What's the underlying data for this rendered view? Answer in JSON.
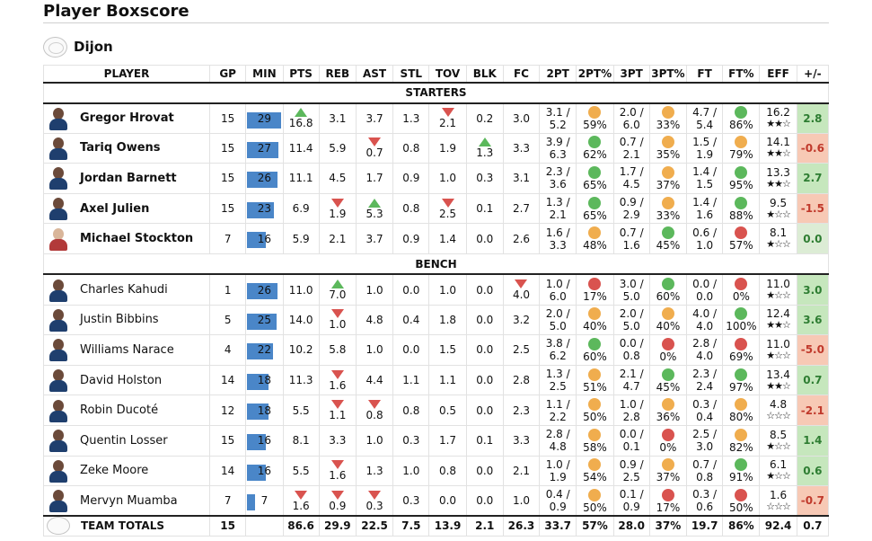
{
  "page": {
    "title": "Player Boxscore"
  },
  "team": {
    "name": "Dijon",
    "logo": "team-logo"
  },
  "colors": {
    "good": "#5cb85c",
    "mid": "#f0ad4e",
    "bad": "#d9534f",
    "min_bar": "#4a86c8",
    "pm_pos": "#c6e7bd",
    "pm_neg": "#f7c9b5",
    "pm_zero": "#dcecd5"
  },
  "headers": [
    "PLAYER",
    "GP",
    "MIN",
    "PTS",
    "REB",
    "AST",
    "STL",
    "TOV",
    "BLK",
    "FC",
    "2PT",
    "2PT%",
    "3PT",
    "3PT%",
    "FT",
    "FT%",
    "EFF",
    "+/-"
  ],
  "groups": {
    "starters": "STARTERS",
    "bench": "BENCH"
  },
  "starters": [
    {
      "name": "Gregor Hrovat",
      "gp": "15",
      "min": "29",
      "min_fill": 1.0,
      "pts": "16.8",
      "pts_t": "up",
      "reb": "3.1",
      "reb_t": "",
      "ast": "3.7",
      "ast_t": "",
      "stl": "1.3",
      "tov": "2.1",
      "tov_t": "down",
      "blk": "0.2",
      "blk_t": "",
      "fc": "3.0",
      "fc_t": "",
      "p2m": "3.1 /",
      "p2a": "5.2",
      "p2pct": "59%",
      "p2c": "mid",
      "p3m": "2.0 /",
      "p3a": "6.0",
      "p3pct": "33%",
      "p3c": "mid",
      "ftm": "4.7 /",
      "fta": "5.4",
      "ftpct": "86%",
      "ftc": "good",
      "eff": "16.2",
      "stars": "★★☆",
      "pm": "2.8",
      "pmc": "pos"
    },
    {
      "name": "Tariq Owens",
      "gp": "15",
      "min": "27",
      "min_fill": 0.93,
      "pts": "11.4",
      "pts_t": "",
      "reb": "5.9",
      "reb_t": "",
      "ast": "0.7",
      "ast_t": "down",
      "stl": "0.8",
      "tov": "1.9",
      "tov_t": "",
      "blk": "1.3",
      "blk_t": "up",
      "fc": "3.3",
      "fc_t": "",
      "p2m": "3.9 /",
      "p2a": "6.3",
      "p2pct": "62%",
      "p2c": "good",
      "p3m": "0.7 /",
      "p3a": "2.1",
      "p3pct": "35%",
      "p3c": "mid",
      "ftm": "1.5 /",
      "fta": "1.9",
      "ftpct": "79%",
      "ftc": "mid",
      "eff": "14.1",
      "stars": "★★☆",
      "pm": "-0.6",
      "pmc": "neg"
    },
    {
      "name": "Jordan Barnett",
      "gp": "15",
      "min": "26",
      "min_fill": 0.9,
      "pts": "11.1",
      "pts_t": "",
      "reb": "4.5",
      "reb_t": "",
      "ast": "1.7",
      "ast_t": "",
      "stl": "0.9",
      "tov": "1.0",
      "tov_t": "",
      "blk": "0.3",
      "blk_t": "",
      "fc": "3.1",
      "fc_t": "",
      "p2m": "2.3 /",
      "p2a": "3.6",
      "p2pct": "65%",
      "p2c": "good",
      "p3m": "1.7 /",
      "p3a": "4.5",
      "p3pct": "37%",
      "p3c": "mid",
      "ftm": "1.4 /",
      "fta": "1.5",
      "ftpct": "95%",
      "ftc": "good",
      "eff": "13.3",
      "stars": "★★☆",
      "pm": "2.7",
      "pmc": "pos"
    },
    {
      "name": "Axel Julien",
      "gp": "15",
      "min": "23",
      "min_fill": 0.79,
      "pts": "6.9",
      "pts_t": "",
      "reb": "1.9",
      "reb_t": "down",
      "ast": "5.3",
      "ast_t": "up",
      "stl": "0.8",
      "tov": "2.5",
      "tov_t": "down",
      "blk": "0.1",
      "blk_t": "",
      "fc": "2.7",
      "fc_t": "",
      "p2m": "1.3 /",
      "p2a": "2.1",
      "p2pct": "65%",
      "p2c": "good",
      "p3m": "0.9 /",
      "p3a": "2.9",
      "p3pct": "33%",
      "p3c": "mid",
      "ftm": "1.4 /",
      "fta": "1.6",
      "ftpct": "88%",
      "ftc": "good",
      "eff": "9.5",
      "stars": "★☆☆",
      "pm": "-1.5",
      "pmc": "neg"
    },
    {
      "name": "Michael Stockton",
      "gp": "7",
      "min": "16",
      "min_fill": 0.55,
      "pts": "5.9",
      "pts_t": "",
      "reb": "2.1",
      "reb_t": "",
      "ast": "3.7",
      "ast_t": "",
      "stl": "0.9",
      "tov": "1.4",
      "tov_t": "",
      "blk": "0.0",
      "blk_t": "",
      "fc": "2.6",
      "fc_t": "",
      "p2m": "1.6 /",
      "p2a": "3.3",
      "p2pct": "48%",
      "p2c": "mid",
      "p3m": "0.7 /",
      "p3a": "1.6",
      "p3pct": "45%",
      "p3c": "good",
      "ftm": "0.6 /",
      "fta": "1.0",
      "ftpct": "57%",
      "ftc": "bad",
      "eff": "8.1",
      "stars": "★☆☆",
      "pm": "0.0",
      "pmc": "zero",
      "red": true
    }
  ],
  "bench": [
    {
      "name": "Charles Kahudi",
      "gp": "1",
      "min": "26",
      "min_fill": 0.9,
      "pts": "11.0",
      "pts_t": "",
      "reb": "7.0",
      "reb_t": "up",
      "ast": "1.0",
      "ast_t": "",
      "stl": "0.0",
      "tov": "1.0",
      "tov_t": "",
      "blk": "0.0",
      "blk_t": "",
      "fc": "4.0",
      "fc_t": "down",
      "p2m": "1.0 /",
      "p2a": "6.0",
      "p2pct": "17%",
      "p2c": "bad",
      "p3m": "3.0 /",
      "p3a": "5.0",
      "p3pct": "60%",
      "p3c": "good",
      "ftm": "0.0 /",
      "fta": "0.0",
      "ftpct": "0%",
      "ftc": "bad",
      "eff": "11.0",
      "stars": "★☆☆",
      "pm": "3.0",
      "pmc": "pos"
    },
    {
      "name": "Justin Bibbins",
      "gp": "5",
      "min": "25",
      "min_fill": 0.86,
      "pts": "14.0",
      "pts_t": "",
      "reb": "1.0",
      "reb_t": "down",
      "ast": "4.8",
      "ast_t": "",
      "stl": "0.4",
      "tov": "1.8",
      "tov_t": "",
      "blk": "0.0",
      "blk_t": "",
      "fc": "3.2",
      "fc_t": "",
      "p2m": "2.0 /",
      "p2a": "5.0",
      "p2pct": "40%",
      "p2c": "mid",
      "p3m": "2.0 /",
      "p3a": "5.0",
      "p3pct": "40%",
      "p3c": "mid",
      "ftm": "4.0 /",
      "fta": "4.0",
      "ftpct": "100%",
      "ftc": "good",
      "eff": "12.4",
      "stars": "★★☆",
      "pm": "3.6",
      "pmc": "pos"
    },
    {
      "name": "Williams Narace",
      "gp": "4",
      "min": "22",
      "min_fill": 0.76,
      "pts": "10.2",
      "pts_t": "",
      "reb": "5.8",
      "reb_t": "",
      "ast": "1.0",
      "ast_t": "",
      "stl": "0.0",
      "tov": "1.5",
      "tov_t": "",
      "blk": "0.0",
      "blk_t": "",
      "fc": "2.5",
      "fc_t": "",
      "p2m": "3.8 /",
      "p2a": "6.2",
      "p2pct": "60%",
      "p2c": "good",
      "p3m": "0.0 /",
      "p3a": "0.8",
      "p3pct": "0%",
      "p3c": "bad",
      "ftm": "2.8 /",
      "fta": "4.0",
      "ftpct": "69%",
      "ftc": "bad",
      "eff": "11.0",
      "stars": "★☆☆",
      "pm": "-5.0",
      "pmc": "neg"
    },
    {
      "name": "David Holston",
      "gp": "14",
      "min": "18",
      "min_fill": 0.62,
      "pts": "11.3",
      "pts_t": "",
      "reb": "1.6",
      "reb_t": "down",
      "ast": "4.4",
      "ast_t": "",
      "stl": "1.1",
      "tov": "1.1",
      "tov_t": "",
      "blk": "0.0",
      "blk_t": "",
      "fc": "2.8",
      "fc_t": "",
      "p2m": "1.3 /",
      "p2a": "2.5",
      "p2pct": "51%",
      "p2c": "mid",
      "p3m": "2.1 /",
      "p3a": "4.7",
      "p3pct": "45%",
      "p3c": "good",
      "ftm": "2.3 /",
      "fta": "2.4",
      "ftpct": "97%",
      "ftc": "good",
      "eff": "13.4",
      "stars": "★★☆",
      "pm": "0.7",
      "pmc": "pos"
    },
    {
      "name": "Robin Ducoté",
      "gp": "12",
      "min": "18",
      "min_fill": 0.62,
      "pts": "5.5",
      "pts_t": "",
      "reb": "1.1",
      "reb_t": "down",
      "ast": "0.8",
      "ast_t": "down",
      "stl": "0.8",
      "tov": "0.5",
      "tov_t": "",
      "blk": "0.0",
      "blk_t": "",
      "fc": "2.3",
      "fc_t": "",
      "p2m": "1.1 /",
      "p2a": "2.2",
      "p2pct": "50%",
      "p2c": "mid",
      "p3m": "1.0 /",
      "p3a": "2.8",
      "p3pct": "36%",
      "p3c": "mid",
      "ftm": "0.3 /",
      "fta": "0.4",
      "ftpct": "80%",
      "ftc": "mid",
      "eff": "4.8",
      "stars": "☆☆☆",
      "pm": "-2.1",
      "pmc": "neg"
    },
    {
      "name": "Quentin Losser",
      "gp": "15",
      "min": "16",
      "min_fill": 0.55,
      "pts": "8.1",
      "pts_t": "",
      "reb": "3.3",
      "reb_t": "",
      "ast": "1.0",
      "ast_t": "",
      "stl": "0.3",
      "tov": "1.7",
      "tov_t": "",
      "blk": "0.1",
      "blk_t": "",
      "fc": "3.3",
      "fc_t": "",
      "p2m": "2.8 /",
      "p2a": "4.8",
      "p2pct": "58%",
      "p2c": "mid",
      "p3m": "0.0 /",
      "p3a": "0.1",
      "p3pct": "0%",
      "p3c": "bad",
      "ftm": "2.5 /",
      "fta": "3.0",
      "ftpct": "82%",
      "ftc": "mid",
      "eff": "8.5",
      "stars": "★☆☆",
      "pm": "1.4",
      "pmc": "pos"
    },
    {
      "name": "Zeke Moore",
      "gp": "14",
      "min": "16",
      "min_fill": 0.55,
      "pts": "5.5",
      "pts_t": "",
      "reb": "1.6",
      "reb_t": "down",
      "ast": "1.3",
      "ast_t": "",
      "stl": "1.0",
      "tov": "0.8",
      "tov_t": "",
      "blk": "0.0",
      "blk_t": "",
      "fc": "2.1",
      "fc_t": "",
      "p2m": "1.0 /",
      "p2a": "1.9",
      "p2pct": "54%",
      "p2c": "mid",
      "p3m": "0.9 /",
      "p3a": "2.5",
      "p3pct": "37%",
      "p3c": "mid",
      "ftm": "0.7 /",
      "fta": "0.8",
      "ftpct": "91%",
      "ftc": "good",
      "eff": "6.1",
      "stars": "★☆☆",
      "pm": "0.6",
      "pmc": "pos"
    },
    {
      "name": "Mervyn Muamba",
      "gp": "7",
      "min": "7",
      "min_fill": 0.24,
      "pts": "1.6",
      "pts_t": "down",
      "reb": "0.9",
      "reb_t": "down",
      "ast": "0.3",
      "ast_t": "down",
      "stl": "0.3",
      "tov": "0.0",
      "tov_t": "",
      "blk": "0.0",
      "blk_t": "",
      "fc": "1.0",
      "fc_t": "",
      "p2m": "0.4 /",
      "p2a": "0.9",
      "p2pct": "50%",
      "p2c": "mid",
      "p3m": "0.1 /",
      "p3a": "0.9",
      "p3pct": "17%",
      "p3c": "bad",
      "ftm": "0.3 /",
      "fta": "0.6",
      "ftpct": "50%",
      "ftc": "bad",
      "eff": "1.6",
      "stars": "☆☆☆",
      "pm": "-0.7",
      "pmc": "neg"
    }
  ],
  "totals": {
    "label": "TEAM TOTALS",
    "gp": "15",
    "min": "",
    "pts": "86.6",
    "reb": "29.9",
    "ast": "22.5",
    "stl": "7.5",
    "tov": "13.9",
    "blk": "2.1",
    "fc": "26.3",
    "p2": "33.7",
    "p2pct": "57%",
    "p3": "28.0",
    "p3pct": "37%",
    "ft": "19.7",
    "ftpct": "86%",
    "eff": "92.4",
    "pm": "0.7"
  }
}
